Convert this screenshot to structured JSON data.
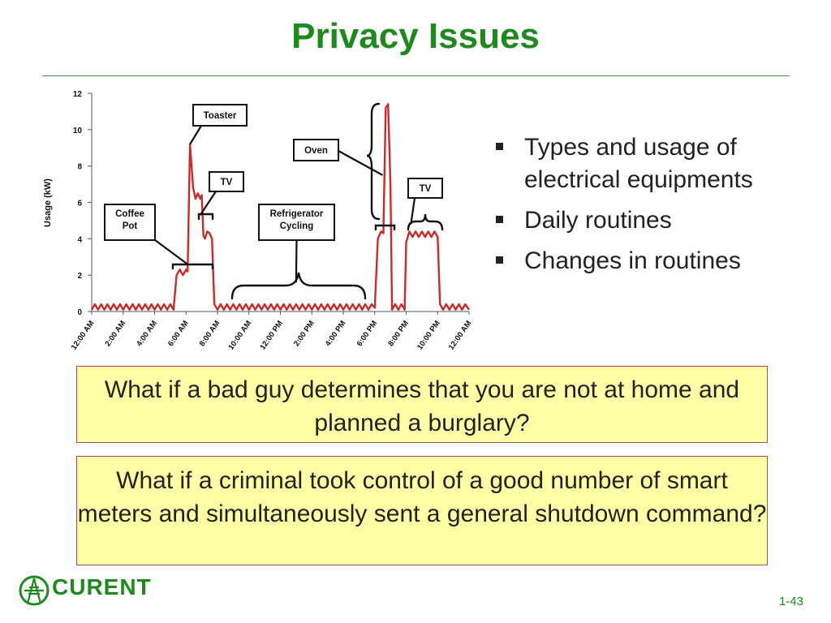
{
  "slide": {
    "title": "Privacy Issues",
    "bullets": [
      "Types and usage of electrical equipments",
      "Daily routines",
      "Changes in routines"
    ],
    "question1": "What if a bad guy determines that you are not at home and planned a burglary?",
    "question2": "What if a criminal took control of a good number of smart meters and simultaneously sent a general shutdown command?",
    "logo_text": "CURENT",
    "page_number": "1-43"
  },
  "colors": {
    "title_green": "#1e8a1e",
    "line_red": "#cc2a2a",
    "box_yellow": "#ffffa6"
  },
  "chart_data": {
    "type": "line",
    "ylabel": "Usage (kW)",
    "xlabel": "",
    "ylim": [
      0,
      12
    ],
    "yticks": [
      "0",
      "2",
      "4",
      "6",
      "8",
      "10",
      "12"
    ],
    "xlim": [
      0,
      24
    ],
    "xticks": [
      "12:00 AM",
      "2:00 AM",
      "4:00 AM",
      "6:00 AM",
      "8:00 AM",
      "10:00 AM",
      "12:00 PM",
      "2:00 PM",
      "4:00 PM",
      "6:00 PM",
      "8:00 PM",
      "10:00 PM",
      "12:00 AM"
    ],
    "grid": false,
    "series": [
      {
        "values": [
          [
            0,
            0.1
          ],
          [
            0.2,
            0.4
          ],
          [
            0.4,
            0.1
          ],
          [
            0.6,
            0.4
          ],
          [
            0.8,
            0.1
          ],
          [
            1,
            0.4
          ],
          [
            1.2,
            0.1
          ],
          [
            1.4,
            0.4
          ],
          [
            1.6,
            0.1
          ],
          [
            1.8,
            0.4
          ],
          [
            2,
            0.1
          ],
          [
            2.2,
            0.4
          ],
          [
            2.4,
            0.1
          ],
          [
            2.6,
            0.4
          ],
          [
            2.8,
            0.1
          ],
          [
            3,
            0.4
          ],
          [
            3.2,
            0.1
          ],
          [
            3.4,
            0.4
          ],
          [
            3.6,
            0.1
          ],
          [
            3.8,
            0.4
          ],
          [
            4,
            0.1
          ],
          [
            4.2,
            0.4
          ],
          [
            4.4,
            0.1
          ],
          [
            4.6,
            0.4
          ],
          [
            4.8,
            0.1
          ],
          [
            5,
            0.4
          ],
          [
            5.2,
            0.1
          ],
          [
            5.4,
            2.0
          ],
          [
            5.6,
            2.3
          ],
          [
            5.8,
            2.0
          ],
          [
            6.0,
            2.3
          ],
          [
            6.1,
            2.2
          ],
          [
            6.25,
            9.2
          ],
          [
            6.45,
            6.8
          ],
          [
            6.6,
            6.2
          ],
          [
            6.75,
            6.5
          ],
          [
            6.9,
            6.2
          ],
          [
            7.0,
            6.4
          ],
          [
            7.1,
            4.2
          ],
          [
            7.2,
            4.0
          ],
          [
            7.35,
            4.4
          ],
          [
            7.5,
            4.3
          ],
          [
            7.65,
            4.0
          ],
          [
            7.8,
            0.4
          ],
          [
            8.0,
            0.1
          ],
          [
            8.2,
            0.4
          ],
          [
            8.4,
            0.1
          ],
          [
            8.6,
            0.4
          ],
          [
            8.8,
            0.1
          ],
          [
            9,
            0.4
          ],
          [
            9.2,
            0.1
          ],
          [
            9.4,
            0.4
          ],
          [
            9.6,
            0.1
          ],
          [
            9.8,
            0.4
          ],
          [
            10,
            0.1
          ],
          [
            10.2,
            0.4
          ],
          [
            10.4,
            0.1
          ],
          [
            10.6,
            0.4
          ],
          [
            10.8,
            0.1
          ],
          [
            11,
            0.4
          ],
          [
            11.2,
            0.1
          ],
          [
            11.4,
            0.4
          ],
          [
            11.6,
            0.1
          ],
          [
            11.8,
            0.4
          ],
          [
            12,
            0.1
          ],
          [
            12.2,
            0.4
          ],
          [
            12.4,
            0.1
          ],
          [
            12.6,
            0.4
          ],
          [
            12.8,
            0.1
          ],
          [
            13,
            0.4
          ],
          [
            13.2,
            0.1
          ],
          [
            13.4,
            0.4
          ],
          [
            13.6,
            0.1
          ],
          [
            13.8,
            0.4
          ],
          [
            14,
            0.1
          ],
          [
            14.2,
            0.4
          ],
          [
            14.4,
            0.1
          ],
          [
            14.6,
            0.4
          ],
          [
            14.8,
            0.1
          ],
          [
            15,
            0.4
          ],
          [
            15.2,
            0.1
          ],
          [
            15.4,
            0.4
          ],
          [
            15.6,
            0.1
          ],
          [
            15.8,
            0.4
          ],
          [
            16,
            0.1
          ],
          [
            16.2,
            0.4
          ],
          [
            16.4,
            0.1
          ],
          [
            16.6,
            0.4
          ],
          [
            16.8,
            0.1
          ],
          [
            17,
            0.4
          ],
          [
            17.2,
            0.1
          ],
          [
            17.4,
            0.4
          ],
          [
            17.6,
            0.1
          ],
          [
            17.8,
            0.4
          ],
          [
            18.0,
            0.2
          ],
          [
            18.2,
            4.0
          ],
          [
            18.4,
            4.4
          ],
          [
            18.55,
            4.3
          ],
          [
            18.7,
            11.2
          ],
          [
            18.85,
            11.4
          ],
          [
            19.0,
            7.0
          ],
          [
            19.1,
            0.1
          ],
          [
            19.3,
            0.4
          ],
          [
            19.5,
            0.1
          ],
          [
            19.7,
            0.4
          ],
          [
            19.9,
            0.1
          ],
          [
            20.0,
            3.8
          ],
          [
            20.2,
            4.4
          ],
          [
            20.4,
            4.1
          ],
          [
            20.6,
            4.4
          ],
          [
            20.8,
            4.1
          ],
          [
            21.0,
            4.4
          ],
          [
            21.2,
            4.1
          ],
          [
            21.4,
            4.4
          ],
          [
            21.6,
            4.1
          ],
          [
            21.8,
            4.4
          ],
          [
            22.0,
            4.1
          ],
          [
            22.15,
            0.4
          ],
          [
            22.35,
            0.1
          ],
          [
            22.55,
            0.4
          ],
          [
            22.75,
            0.1
          ],
          [
            22.95,
            0.4
          ],
          [
            23.15,
            0.1
          ],
          [
            23.35,
            0.4
          ],
          [
            23.55,
            0.1
          ],
          [
            23.75,
            0.4
          ],
          [
            24.0,
            0.1
          ]
        ]
      }
    ],
    "annotations": [
      {
        "label": [
          "Toaster"
        ],
        "x": 6.25,
        "y": 9.2
      },
      {
        "label": [
          "TV"
        ],
        "x": 7.0,
        "y": 5.4
      },
      {
        "label": [
          "Coffee",
          "Pot"
        ],
        "x": 6.2,
        "y": 2.6
      },
      {
        "label": [
          "Refrigerator",
          "Cycling"
        ],
        "x": 13.0,
        "y": 1.4
      },
      {
        "label": [
          "Oven"
        ],
        "x": 18.8,
        "y": 7.5
      },
      {
        "label": [
          "TV"
        ],
        "x": 21.1,
        "y": 4.7
      }
    ]
  }
}
